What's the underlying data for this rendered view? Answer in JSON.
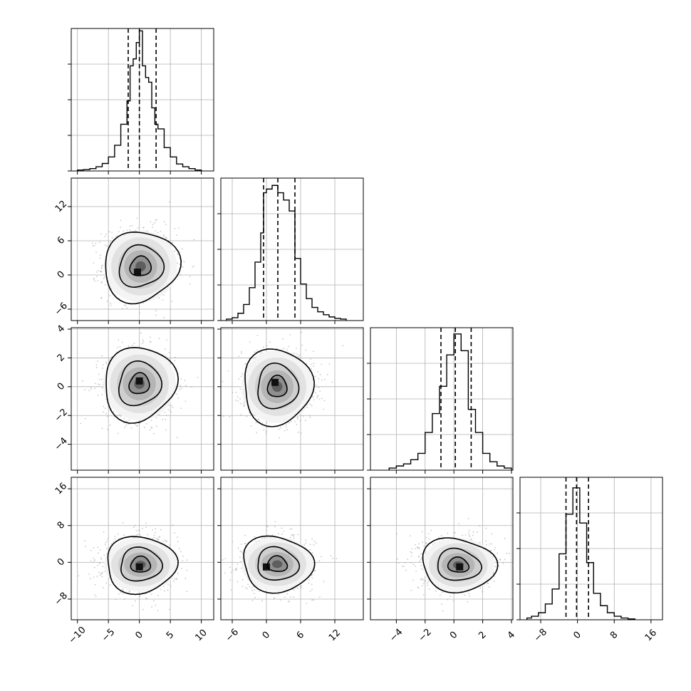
{
  "chart_data": {
    "type": "corner",
    "parameters": 4,
    "grid": true,
    "colors": {
      "line": "#000000",
      "grid": "#b0b0b0",
      "points": "#9a9a9a"
    },
    "histograms": [
      {
        "param": 0,
        "range": [
          -11,
          12
        ],
        "quantiles": [
          -1.8,
          0.0,
          2.7
        ],
        "bins": [
          {
            "x0": -10.0,
            "x1": -9.0,
            "h": 0.004
          },
          {
            "x0": -9.0,
            "x1": -8.0,
            "h": 0.006
          },
          {
            "x0": -8.0,
            "x1": -7.0,
            "h": 0.01
          },
          {
            "x0": -7.0,
            "x1": -6.0,
            "h": 0.018
          },
          {
            "x0": -6.0,
            "x1": -5.0,
            "h": 0.032
          },
          {
            "x0": -5.0,
            "x1": -4.0,
            "h": 0.06
          },
          {
            "x0": -4.0,
            "x1": -3.0,
            "h": 0.11
          },
          {
            "x0": -3.0,
            "x1": -2.0,
            "h": 0.2
          },
          {
            "x0": -2.0,
            "x1": -1.5,
            "h": 0.3
          },
          {
            "x0": -1.5,
            "x1": -1.0,
            "h": 0.45
          },
          {
            "x0": -1.0,
            "x1": -0.5,
            "h": 0.48
          },
          {
            "x0": -0.5,
            "x1": 0.0,
            "h": 0.55
          },
          {
            "x0": 0.0,
            "x1": 0.5,
            "h": 0.6
          },
          {
            "x0": 0.5,
            "x1": 1.0,
            "h": 0.45
          },
          {
            "x0": 1.0,
            "x1": 1.5,
            "h": 0.4
          },
          {
            "x0": 1.5,
            "x1": 2.0,
            "h": 0.38
          },
          {
            "x0": 2.0,
            "x1": 2.5,
            "h": 0.27
          },
          {
            "x0": 2.5,
            "x1": 3.0,
            "h": 0.2
          },
          {
            "x0": 3.0,
            "x1": 4.0,
            "h": 0.18
          },
          {
            "x0": 4.0,
            "x1": 5.0,
            "h": 0.1
          },
          {
            "x0": 5.0,
            "x1": 6.0,
            "h": 0.06
          },
          {
            "x0": 6.0,
            "x1": 7.0,
            "h": 0.03
          },
          {
            "x0": 7.0,
            "x1": 8.0,
            "h": 0.018
          },
          {
            "x0": 8.0,
            "x1": 9.0,
            "h": 0.01
          },
          {
            "x0": 9.0,
            "x1": 10.0,
            "h": 0.004
          }
        ],
        "ylim": [
          0,
          0.61
        ]
      },
      {
        "param": 1,
        "range": [
          -8,
          17
        ],
        "quantiles": [
          -0.5,
          2.0,
          5.0
        ],
        "bins": [
          {
            "x0": -7,
            "x1": -6,
            "h": 0.002
          },
          {
            "x0": -6,
            "x1": -5,
            "h": 0.004
          },
          {
            "x0": -5,
            "x1": -4,
            "h": 0.01
          },
          {
            "x0": -4,
            "x1": -3,
            "h": 0.022
          },
          {
            "x0": -3,
            "x1": -2,
            "h": 0.045
          },
          {
            "x0": -2,
            "x1": -1,
            "h": 0.08
          },
          {
            "x0": -1,
            "x1": -0.5,
            "h": 0.12
          },
          {
            "x0": -0.5,
            "x1": 0,
            "h": 0.175
          },
          {
            "x0": 0,
            "x1": 1,
            "h": 0.18
          },
          {
            "x0": 1,
            "x1": 2,
            "h": 0.185
          },
          {
            "x0": 2,
            "x1": 3,
            "h": 0.175
          },
          {
            "x0": 3,
            "x1": 4,
            "h": 0.165
          },
          {
            "x0": 4,
            "x1": 5,
            "h": 0.15
          },
          {
            "x0": 5,
            "x1": 6,
            "h": 0.085
          },
          {
            "x0": 6,
            "x1": 7,
            "h": 0.05
          },
          {
            "x0": 7,
            "x1": 8,
            "h": 0.03
          },
          {
            "x0": 8,
            "x1": 9,
            "h": 0.018
          },
          {
            "x0": 9,
            "x1": 10,
            "h": 0.012
          },
          {
            "x0": 10,
            "x1": 11,
            "h": 0.008
          },
          {
            "x0": 11,
            "x1": 12,
            "h": 0.005
          },
          {
            "x0": 12,
            "x1": 13,
            "h": 0.003
          },
          {
            "x0": 13,
            "x1": 14,
            "h": 0.002
          }
        ],
        "ylim": [
          0,
          0.195
        ]
      },
      {
        "param": 2,
        "range": [
          -5.8,
          4.1
        ],
        "quantiles": [
          -0.9,
          0.1,
          1.2
        ],
        "bins": [
          {
            "x0": -4.5,
            "x1": -4.0,
            "h": 0.01
          },
          {
            "x0": -4.0,
            "x1": -3.5,
            "h": 0.02
          },
          {
            "x0": -3.5,
            "x1": -3.0,
            "h": 0.03
          },
          {
            "x0": -3.0,
            "x1": -2.5,
            "h": 0.05
          },
          {
            "x0": -2.5,
            "x1": -2.0,
            "h": 0.08
          },
          {
            "x0": -2.0,
            "x1": -1.5,
            "h": 0.18
          },
          {
            "x0": -1.5,
            "x1": -1.0,
            "h": 0.27
          },
          {
            "x0": -1.0,
            "x1": -0.5,
            "h": 0.4
          },
          {
            "x0": -0.5,
            "x1": 0.0,
            "h": 0.55
          },
          {
            "x0": 0.0,
            "x1": 0.5,
            "h": 0.65
          },
          {
            "x0": 0.5,
            "x1": 1.0,
            "h": 0.57
          },
          {
            "x0": 1.0,
            "x1": 1.5,
            "h": 0.29
          },
          {
            "x0": 1.5,
            "x1": 2.0,
            "h": 0.18
          },
          {
            "x0": 2.0,
            "x1": 2.5,
            "h": 0.08
          },
          {
            "x0": 2.5,
            "x1": 3.0,
            "h": 0.04
          },
          {
            "x0": 3.0,
            "x1": 3.5,
            "h": 0.02
          },
          {
            "x0": 3.5,
            "x1": 4.0,
            "h": 0.01
          }
        ],
        "ylim": [
          0,
          0.68
        ]
      },
      {
        "param": 3,
        "range": [
          -12.5,
          18.5
        ],
        "quantiles": [
          -2.5,
          -0.2,
          2.4
        ],
        "bins": [
          {
            "x0": -11,
            "x1": -10,
            "h": 0.002
          },
          {
            "x0": -10,
            "x1": -8.5,
            "h": 0.004
          },
          {
            "x0": -8.5,
            "x1": -7,
            "h": 0.008
          },
          {
            "x0": -7,
            "x1": -5.5,
            "h": 0.018
          },
          {
            "x0": -5.5,
            "x1": -4,
            "h": 0.035
          },
          {
            "x0": -4,
            "x1": -2.5,
            "h": 0.075
          },
          {
            "x0": -2.5,
            "x1": -1,
            "h": 0.12
          },
          {
            "x0": -1,
            "x1": 0.5,
            "h": 0.15
          },
          {
            "x0": 0.5,
            "x1": 2,
            "h": 0.11
          },
          {
            "x0": 2,
            "x1": 3.5,
            "h": 0.065
          },
          {
            "x0": 3.5,
            "x1": 5,
            "h": 0.03
          },
          {
            "x0": 5,
            "x1": 6.5,
            "h": 0.016
          },
          {
            "x0": 6.5,
            "x1": 8,
            "h": 0.008
          },
          {
            "x0": 8,
            "x1": 9.5,
            "h": 0.004
          },
          {
            "x0": 9.5,
            "x1": 11,
            "h": 0.002
          },
          {
            "x0": 11,
            "x1": 12.5,
            "h": 0.001
          }
        ],
        "ylim": [
          0,
          0.162
        ]
      }
    ],
    "scatter_panels": [
      {
        "x_param": 0,
        "y_param": 1,
        "mean": [
          0.0,
          2.0
        ],
        "sd": [
          2.8,
          3.0
        ],
        "peak": [
          -0.3,
          0.5
        ],
        "contour_radii": [
          0.95,
          2.0,
          3.4
        ],
        "contour_center": [
          0.2,
          1.5
        ]
      },
      {
        "x_param": 0,
        "y_param": 2,
        "mean": [
          0.0,
          0.1
        ],
        "sd": [
          2.8,
          1.2
        ],
        "peak": [
          0.0,
          0.4
        ],
        "contour_radii": [
          0.95,
          2.0,
          3.4
        ],
        "contour_center": [
          0.0,
          0.2
        ]
      },
      {
        "x_param": 1,
        "y_param": 2,
        "mean": [
          2.0,
          0.1
        ],
        "sd": [
          3.0,
          1.2
        ],
        "peak": [
          1.5,
          0.3
        ],
        "contour_radii": [
          0.95,
          2.0,
          3.4
        ],
        "contour_center": [
          1.9,
          0.0
        ]
      },
      {
        "x_param": 0,
        "y_param": 3,
        "mean": [
          0.0,
          -0.2
        ],
        "sd": [
          2.8,
          2.8
        ],
        "peak": [
          0.0,
          -1.0
        ],
        "contour_radii": [
          0.95,
          2.0,
          3.4
        ],
        "contour_center": [
          0.2,
          -0.5
        ]
      },
      {
        "x_param": 1,
        "y_param": 3,
        "mean": [
          2.0,
          -0.2
        ],
        "sd": [
          3.0,
          2.8
        ],
        "peak": [
          0.0,
          -1.0
        ],
        "contour_radii": [
          0.95,
          2.0,
          3.4
        ],
        "contour_center": [
          1.9,
          -0.4
        ]
      },
      {
        "x_param": 2,
        "y_param": 3,
        "mean": [
          0.1,
          -0.2
        ],
        "sd": [
          1.2,
          2.8
        ],
        "peak": [
          0.4,
          -1.0
        ],
        "contour_radii": [
          0.95,
          2.0,
          3.4
        ],
        "contour_center": [
          0.3,
          -0.6
        ]
      }
    ],
    "axes": [
      {
        "param": 0,
        "range": [
          -11,
          12
        ],
        "ticks": [
          -10,
          -5,
          0,
          5,
          10
        ],
        "tick_labels": [
          "−10",
          "−5",
          "0",
          "5",
          "10"
        ]
      },
      {
        "param": 1,
        "range": [
          -8,
          17
        ],
        "ticks": [
          -6,
          0,
          6,
          12
        ],
        "tick_labels": [
          "−6",
          "0",
          "6",
          "12"
        ]
      },
      {
        "param": 2,
        "range": [
          -5.8,
          4.1
        ],
        "ticks": [
          -4,
          -2,
          0,
          2,
          4
        ],
        "tick_labels": [
          "−4",
          "−2",
          "0",
          "2",
          "4"
        ]
      },
      {
        "param": 3,
        "range": [
          -12.5,
          18.5
        ],
        "ticks": [
          -8,
          0,
          8,
          16
        ],
        "tick_labels": [
          "−8",
          "0",
          "8",
          "16"
        ]
      }
    ]
  }
}
